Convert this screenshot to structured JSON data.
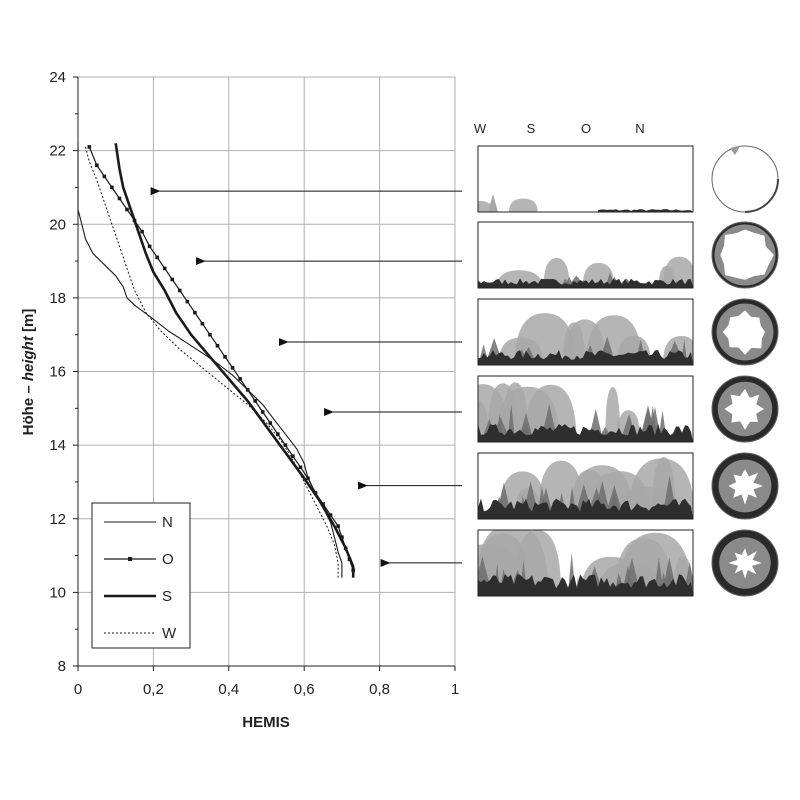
{
  "chart_data": {
    "type": "line",
    "xlabel": "HEMIS",
    "ylabel_prefix": "Höhe – ",
    "ylabel_italic": "height",
    "ylabel_unit": "  [m]",
    "xlim": [
      0,
      1
    ],
    "ylim": [
      8,
      24
    ],
    "x_ticks": [
      "0",
      "0,2",
      "0,4",
      "0,6",
      "0,8",
      "1"
    ],
    "y_ticks": [
      "8",
      "10",
      "12",
      "14",
      "16",
      "18",
      "20",
      "22",
      "24"
    ],
    "grid": true,
    "legend_placement": "bottom-left",
    "series": [
      {
        "name": "N",
        "style": "solid-thin",
        "points": [
          [
            0.0,
            22.2
          ],
          [
            0.0,
            21.0
          ],
          [
            0.0,
            20.4
          ],
          [
            0.01,
            20.0
          ],
          [
            0.02,
            19.6
          ],
          [
            0.04,
            19.2
          ],
          [
            0.07,
            18.9
          ],
          [
            0.1,
            18.6
          ],
          [
            0.12,
            18.3
          ],
          [
            0.13,
            18.0
          ],
          [
            0.15,
            17.8
          ],
          [
            0.19,
            17.5
          ],
          [
            0.24,
            17.1
          ],
          [
            0.3,
            16.7
          ],
          [
            0.36,
            16.3
          ],
          [
            0.41,
            15.9
          ],
          [
            0.45,
            15.5
          ],
          [
            0.49,
            15.1
          ],
          [
            0.52,
            14.7
          ],
          [
            0.55,
            14.3
          ],
          [
            0.58,
            13.9
          ],
          [
            0.6,
            13.5
          ],
          [
            0.61,
            13.1
          ],
          [
            0.63,
            12.7
          ],
          [
            0.65,
            12.3
          ],
          [
            0.67,
            11.9
          ],
          [
            0.68,
            11.5
          ],
          [
            0.69,
            11.1
          ],
          [
            0.7,
            10.8
          ],
          [
            0.7,
            10.4
          ]
        ]
      },
      {
        "name": "O",
        "style": "markers",
        "points": [
          [
            0.03,
            22.1
          ],
          [
            0.05,
            21.6
          ],
          [
            0.07,
            21.3
          ],
          [
            0.09,
            21.0
          ],
          [
            0.11,
            20.7
          ],
          [
            0.13,
            20.4
          ],
          [
            0.15,
            20.1
          ],
          [
            0.17,
            19.8
          ],
          [
            0.19,
            19.4
          ],
          [
            0.21,
            19.1
          ],
          [
            0.23,
            18.8
          ],
          [
            0.25,
            18.5
          ],
          [
            0.27,
            18.2
          ],
          [
            0.29,
            17.9
          ],
          [
            0.31,
            17.6
          ],
          [
            0.33,
            17.3
          ],
          [
            0.35,
            17.0
          ],
          [
            0.37,
            16.7
          ],
          [
            0.39,
            16.4
          ],
          [
            0.41,
            16.1
          ],
          [
            0.43,
            15.8
          ],
          [
            0.45,
            15.5
          ],
          [
            0.47,
            15.2
          ],
          [
            0.49,
            14.9
          ],
          [
            0.51,
            14.6
          ],
          [
            0.53,
            14.3
          ],
          [
            0.55,
            14.0
          ],
          [
            0.57,
            13.7
          ],
          [
            0.59,
            13.4
          ],
          [
            0.61,
            13.1
          ],
          [
            0.63,
            12.7
          ],
          [
            0.65,
            12.4
          ],
          [
            0.67,
            12.1
          ],
          [
            0.69,
            11.8
          ],
          [
            0.7,
            11.5
          ],
          [
            0.71,
            11.2
          ],
          [
            0.72,
            10.9
          ],
          [
            0.73,
            10.6
          ]
        ]
      },
      {
        "name": "S",
        "style": "solid-thick",
        "points": [
          [
            0.1,
            22.2
          ],
          [
            0.11,
            21.5
          ],
          [
            0.12,
            21.0
          ],
          [
            0.14,
            20.4
          ],
          [
            0.16,
            19.8
          ],
          [
            0.18,
            19.2
          ],
          [
            0.2,
            18.7
          ],
          [
            0.23,
            18.2
          ],
          [
            0.26,
            17.6
          ],
          [
            0.3,
            17.0
          ],
          [
            0.35,
            16.4
          ],
          [
            0.4,
            15.8
          ],
          [
            0.45,
            15.2
          ],
          [
            0.5,
            14.5
          ],
          [
            0.55,
            13.8
          ],
          [
            0.6,
            13.1
          ],
          [
            0.64,
            12.5
          ],
          [
            0.68,
            11.8
          ],
          [
            0.71,
            11.2
          ],
          [
            0.73,
            10.7
          ],
          [
            0.73,
            10.4
          ]
        ]
      },
      {
        "name": "W",
        "style": "dotted",
        "points": [
          [
            0.02,
            22.1
          ],
          [
            0.03,
            21.7
          ],
          [
            0.05,
            21.2
          ],
          [
            0.07,
            20.6
          ],
          [
            0.09,
            20.0
          ],
          [
            0.11,
            19.4
          ],
          [
            0.13,
            18.8
          ],
          [
            0.15,
            18.2
          ],
          [
            0.18,
            17.6
          ],
          [
            0.22,
            17.1
          ],
          [
            0.27,
            16.6
          ],
          [
            0.33,
            16.1
          ],
          [
            0.39,
            15.6
          ],
          [
            0.45,
            15.1
          ],
          [
            0.5,
            14.6
          ],
          [
            0.54,
            14.1
          ],
          [
            0.57,
            13.6
          ],
          [
            0.6,
            13.0
          ],
          [
            0.63,
            12.4
          ],
          [
            0.66,
            11.8
          ],
          [
            0.68,
            11.3
          ],
          [
            0.69,
            10.8
          ],
          [
            0.69,
            10.4
          ]
        ]
      }
    ]
  },
  "panel_directions": [
    "W",
    "S",
    "O",
    "N"
  ],
  "panels": [
    {
      "pointer_height": 20.9,
      "pointer_hemis": 0.19,
      "circle_cover": 0.0
    },
    {
      "pointer_height": 19.0,
      "pointer_hemis": 0.31,
      "circle_cover": 0.3
    },
    {
      "pointer_height": 16.8,
      "pointer_hemis": 0.53,
      "circle_cover": 0.55
    },
    {
      "pointer_height": 14.9,
      "pointer_hemis": 0.65,
      "circle_cover": 0.7
    },
    {
      "pointer_height": 12.9,
      "pointer_hemis": 0.74,
      "circle_cover": 0.8
    },
    {
      "pointer_height": 10.8,
      "pointer_hemis": 0.8,
      "circle_cover": 0.88
    }
  ],
  "colors": {
    "grid": "#b0b0b0",
    "axis": "#222222",
    "line": "#1a1a1a",
    "canopy_light": "#a8a8a8",
    "canopy_mid": "#6e6e6e",
    "canopy_dark": "#2e2e2e"
  }
}
